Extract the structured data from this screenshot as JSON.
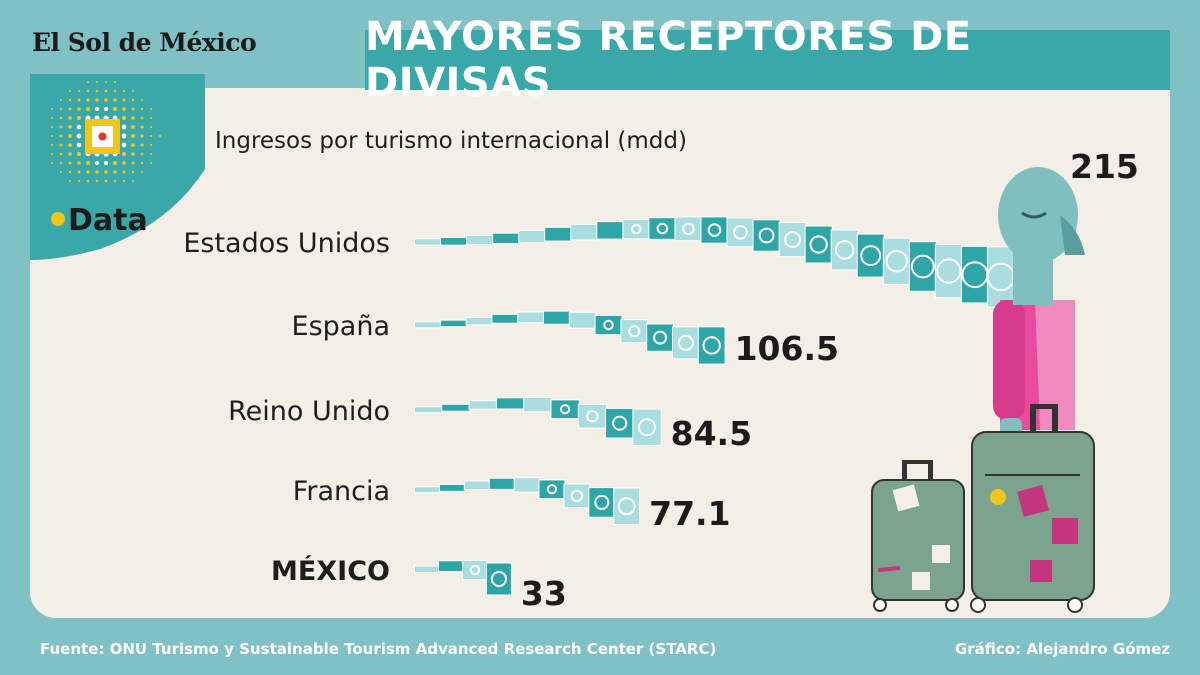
{
  "header": {
    "masthead": "El Sol de México",
    "title": "MAYORES RECEPTORES DE DIVISAS",
    "subtitle": "Ingresos por turismo internacional (mdd)",
    "badge": "Data"
  },
  "footer": {
    "source": "Fuente: ONU Turismo y Sustainable Tourism Advanced Research Center (STARC)",
    "credit": "Gráfico: Alejandro Gómez"
  },
  "colors": {
    "background": "#7fc1c4",
    "panel": "#f3efe6",
    "title_bar": "#3aa7a8",
    "bill_dark": "#2ea5a6",
    "bill_light": "#a9dde0",
    "text": "#1e1e1e",
    "accent_yellow": "#f1c61c"
  },
  "illustration": {
    "description_icons": [
      "traveler-icon",
      "suitcase-icon",
      "money-bill-icon"
    ]
  },
  "chart_data": {
    "type": "bar",
    "orientation": "horizontal",
    "title": "MAYORES RECEPTORES DE DIVISAS",
    "subtitle": "Ingresos por turismo internacional (mdd)",
    "categories": [
      "Estados Unidos",
      "España",
      "Reino Unido",
      "Francia",
      "MÉXICO"
    ],
    "values": [
      215,
      106.5,
      84.5,
      77.1,
      33
    ],
    "value_labels": [
      "215",
      "106.5",
      "84.5",
      "77.1",
      "33"
    ],
    "highlight": "MÉXICO",
    "xlim": [
      0,
      215
    ],
    "grid": false,
    "legend": "none"
  }
}
